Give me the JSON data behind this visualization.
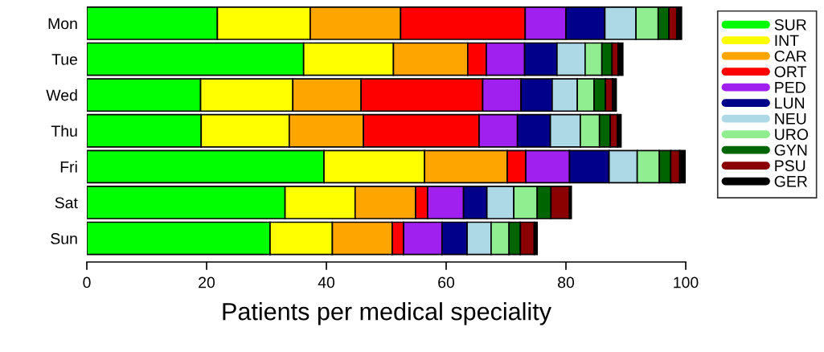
{
  "chart_data": {
    "type": "bar",
    "orientation": "horizontal",
    "stacked": true,
    "categories": [
      "Mon",
      "Tue",
      "Wed",
      "Thu",
      "Fri",
      "Sat",
      "Sun"
    ],
    "series": [
      {
        "name": "SUR",
        "color": "#00ff00",
        "values": [
          21.8,
          36.2,
          19.0,
          19.1,
          39.6,
          33.1,
          30.6
        ]
      },
      {
        "name": "INT",
        "color": "#ffff00",
        "values": [
          15.5,
          15.0,
          15.4,
          14.7,
          16.8,
          11.7,
          10.4
        ]
      },
      {
        "name": "CAR",
        "color": "#ffa500",
        "values": [
          15.1,
          12.4,
          11.4,
          12.4,
          13.8,
          10.1,
          10.0
        ]
      },
      {
        "name": "ORT",
        "color": "#ff0000",
        "values": [
          20.8,
          3.1,
          20.3,
          19.3,
          3.1,
          2.0,
          1.9
        ]
      },
      {
        "name": "PED",
        "color": "#a020f0",
        "values": [
          6.8,
          6.4,
          6.4,
          6.4,
          7.3,
          6.0,
          6.4
        ]
      },
      {
        "name": "LUN",
        "color": "#00008b",
        "values": [
          6.5,
          5.4,
          5.2,
          5.5,
          6.6,
          3.9,
          4.2
        ]
      },
      {
        "name": "NEU",
        "color": "#add8e6",
        "values": [
          5.2,
          4.7,
          4.2,
          5.0,
          4.7,
          4.5,
          4.0
        ]
      },
      {
        "name": "URO",
        "color": "#90ee90",
        "values": [
          3.7,
          2.8,
          2.8,
          3.2,
          3.7,
          3.9,
          3.0
        ]
      },
      {
        "name": "GYN",
        "color": "#006400",
        "values": [
          1.8,
          1.7,
          1.9,
          1.8,
          1.9,
          2.3,
          1.9
        ]
      },
      {
        "name": "PSU",
        "color": "#8b0000",
        "values": [
          1.3,
          1.0,
          1.2,
          1.2,
          1.5,
          3.1,
          2.3
        ]
      },
      {
        "name": "GER",
        "color": "#000000",
        "values": [
          0.8,
          0.8,
          0.6,
          0.6,
          1.0,
          0.3,
          0.5
        ]
      }
    ],
    "xlim": [
      0,
      100
    ],
    "xticks": [
      0,
      20,
      40,
      60,
      80,
      100
    ],
    "xlabel": "Patients per medical speciality",
    "legend": "right"
  }
}
